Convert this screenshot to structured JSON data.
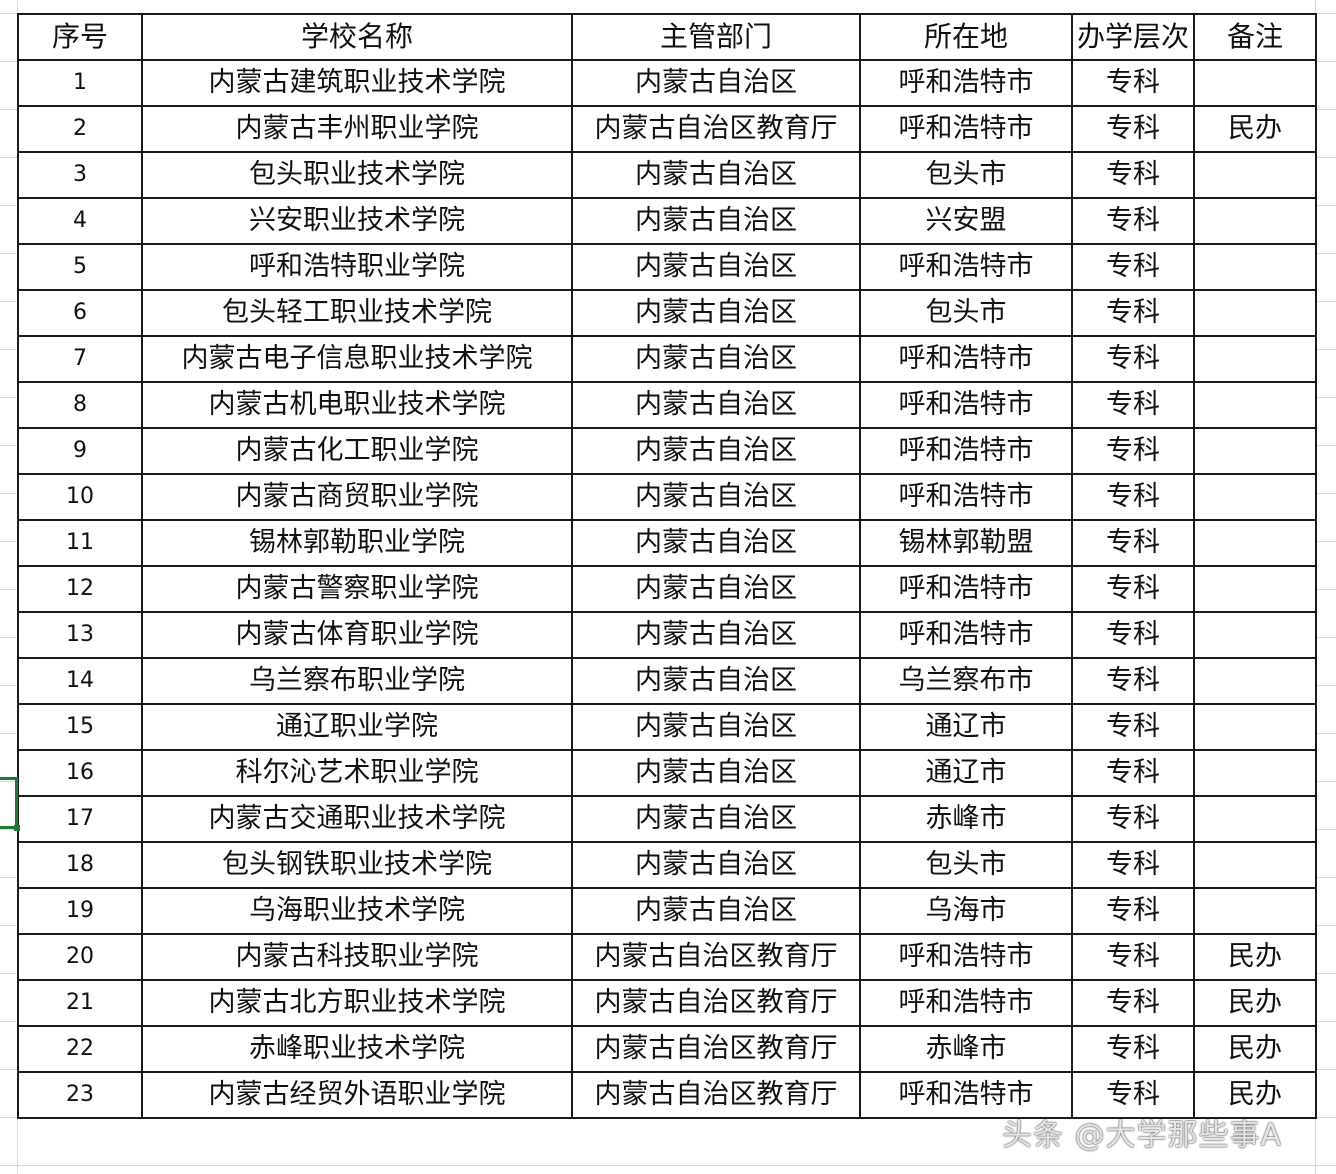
{
  "headers": [
    "序号",
    "学校名称",
    "主管部门",
    "所在地",
    "办学层次",
    "备注"
  ],
  "rows": [
    [
      "1",
      "内蒙古建筑职业技术学院",
      "内蒙古自治区",
      "呼和浩特市",
      "专科",
      ""
    ],
    [
      "2",
      "内蒙古丰州职业学院",
      "内蒙古自治区教育厅",
      "呼和浩特市",
      "专科",
      "民办"
    ],
    [
      "3",
      "包头职业技术学院",
      "内蒙古自治区",
      "包头市",
      "专科",
      ""
    ],
    [
      "4",
      "兴安职业技术学院",
      "内蒙古自治区",
      "兴安盟",
      "专科",
      ""
    ],
    [
      "5",
      "呼和浩特职业学院",
      "内蒙古自治区",
      "呼和浩特市",
      "专科",
      ""
    ],
    [
      "6",
      "包头轻工职业技术学院",
      "内蒙古自治区",
      "包头市",
      "专科",
      ""
    ],
    [
      "7",
      "内蒙古电子信息职业技术学院",
      "内蒙古自治区",
      "呼和浩特市",
      "专科",
      ""
    ],
    [
      "8",
      "内蒙古机电职业技术学院",
      "内蒙古自治区",
      "呼和浩特市",
      "专科",
      ""
    ],
    [
      "9",
      "内蒙古化工职业学院",
      "内蒙古自治区",
      "呼和浩特市",
      "专科",
      ""
    ],
    [
      "10",
      "内蒙古商贸职业学院",
      "内蒙古自治区",
      "呼和浩特市",
      "专科",
      ""
    ],
    [
      "11",
      "锡林郭勒职业学院",
      "内蒙古自治区",
      "锡林郭勒盟",
      "专科",
      ""
    ],
    [
      "12",
      "内蒙古警察职业学院",
      "内蒙古自治区",
      "呼和浩特市",
      "专科",
      ""
    ],
    [
      "13",
      "内蒙古体育职业学院",
      "内蒙古自治区",
      "呼和浩特市",
      "专科",
      ""
    ],
    [
      "14",
      "乌兰察布职业学院",
      "内蒙古自治区",
      "乌兰察布市",
      "专科",
      ""
    ],
    [
      "15",
      "通辽职业学院",
      "内蒙古自治区",
      "通辽市",
      "专科",
      ""
    ],
    [
      "16",
      "科尔沁艺术职业学院",
      "内蒙古自治区",
      "通辽市",
      "专科",
      ""
    ],
    [
      "17",
      "内蒙古交通职业技术学院",
      "内蒙古自治区",
      "赤峰市",
      "专科",
      ""
    ],
    [
      "18",
      "包头钢铁职业技术学院",
      "内蒙古自治区",
      "包头市",
      "专科",
      ""
    ],
    [
      "19",
      "乌海职业技术学院",
      "内蒙古自治区",
      "乌海市",
      "专科",
      ""
    ],
    [
      "20",
      "内蒙古科技职业学院",
      "内蒙古自治区教育厅",
      "呼和浩特市",
      "专科",
      "民办"
    ],
    [
      "21",
      "内蒙古北方职业技术学院",
      "内蒙古自治区教育厅",
      "呼和浩特市",
      "专科",
      "民办"
    ],
    [
      "22",
      "赤峰职业技术学院",
      "内蒙古自治区教育厅",
      "赤峰市",
      "专科",
      "民办"
    ],
    [
      "23",
      "内蒙古经贸外语职业学院",
      "内蒙古自治区教育厅",
      "呼和浩特市",
      "专科",
      "民办"
    ]
  ],
  "watermark": "头条 @大学那些事A",
  "colors": {
    "selection": "#1e7a2e",
    "border": "#1a1a1a",
    "gridline": "#d8d8d8"
  }
}
